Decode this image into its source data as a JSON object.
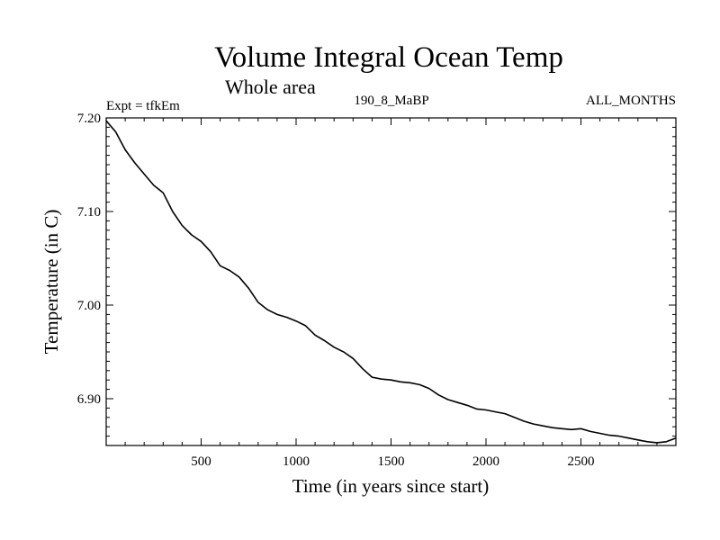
{
  "chart_data": {
    "type": "line",
    "title": "Volume Integral Ocean Temp",
    "subtitle": "Whole area",
    "header_left": "Expt = tfkEm",
    "header_center": "190_8_MaBP",
    "header_right": "ALL_MONTHS",
    "xlabel": "Time (in years since start)",
    "ylabel": "Temperature (in C)",
    "xlim": [
      0,
      3000
    ],
    "ylim": [
      6.85,
      7.2
    ],
    "x_ticks": [
      500,
      1000,
      1500,
      2000,
      2500
    ],
    "x_tick_labels": [
      "500",
      "1000",
      "1500",
      "2000",
      "2500"
    ],
    "y_ticks": [
      6.9,
      7.0,
      7.1,
      7.2
    ],
    "y_tick_labels": [
      "6.90",
      "7.00",
      "7.10",
      "7.20"
    ],
    "grid": false,
    "series": [
      {
        "color": "#000000",
        "x": [
          0,
          50,
          100,
          150,
          200,
          250,
          300,
          350,
          400,
          450,
          500,
          550,
          600,
          650,
          700,
          750,
          800,
          850,
          900,
          950,
          1000,
          1050,
          1100,
          1150,
          1200,
          1250,
          1300,
          1350,
          1400,
          1450,
          1500,
          1550,
          1600,
          1650,
          1700,
          1750,
          1800,
          1850,
          1900,
          1950,
          2000,
          2050,
          2100,
          2150,
          2200,
          2250,
          2300,
          2350,
          2400,
          2450,
          2500,
          2550,
          2600,
          2650,
          2700,
          2750,
          2800,
          2850,
          2900,
          2950,
          3000
        ],
        "y": [
          7.197,
          7.185,
          7.166,
          7.152,
          7.14,
          7.128,
          7.12,
          7.1,
          7.085,
          7.075,
          7.068,
          7.057,
          7.042,
          7.037,
          7.03,
          7.018,
          7.003,
          6.995,
          6.99,
          6.987,
          6.983,
          6.978,
          6.968,
          6.962,
          6.955,
          6.95,
          6.943,
          6.932,
          6.923,
          6.921,
          6.92,
          6.918,
          6.917,
          6.915,
          6.911,
          6.904,
          6.899,
          6.896,
          6.893,
          6.889,
          6.888,
          6.886,
          6.884,
          6.88,
          6.876,
          6.873,
          6.871,
          6.869,
          6.868,
          6.867,
          6.868,
          6.865,
          6.863,
          6.861,
          6.86,
          6.858,
          6.856,
          6.854,
          6.853,
          6.854,
          6.858
        ]
      }
    ]
  }
}
